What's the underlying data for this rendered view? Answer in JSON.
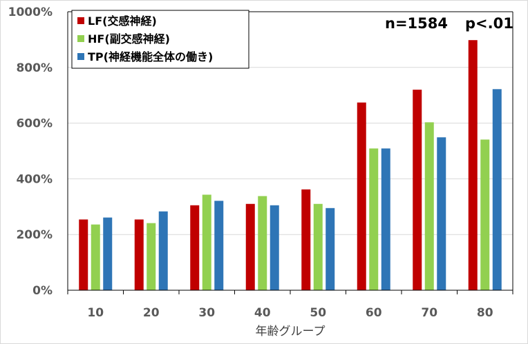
{
  "chart_data": {
    "type": "bar",
    "categories": [
      "10",
      "20",
      "30",
      "40",
      "50",
      "60",
      "70",
      "80"
    ],
    "series": [
      {
        "name": "LF(交感神経)",
        "color": "#c00000",
        "values": [
          254,
          254,
          305,
          310,
          362,
          674,
          720,
          898
        ]
      },
      {
        "name": "HF(副交感神経)",
        "color": "#92d050",
        "values": [
          236,
          241,
          343,
          338,
          310,
          509,
          603,
          541
        ]
      },
      {
        "name": "TP(神経機能全体の働き)",
        "color": "#2e75b6",
        "values": [
          261,
          283,
          321,
          305,
          295,
          509,
          549,
          722
        ]
      }
    ],
    "xlabel": "年齢グループ",
    "ylabel": "",
    "ylim": [
      0,
      1000
    ],
    "yticks": [
      0,
      200,
      400,
      600,
      800,
      1000
    ],
    "ytick_suffix": "%",
    "grid": true,
    "legend_position": "top-left",
    "annotation": {
      "n_label": "n=1584",
      "p_label": "p<.01"
    }
  }
}
